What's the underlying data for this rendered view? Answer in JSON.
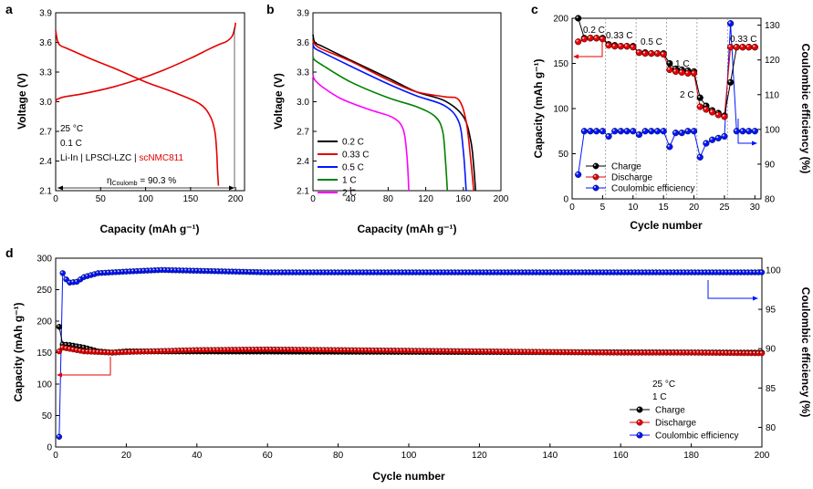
{
  "colors": {
    "black": "#000000",
    "red": "#e60000",
    "blue": "#0015ff",
    "green": "#008000",
    "magenta": "#ff00ff",
    "gray": "#888888"
  },
  "chart_data": [
    {
      "panel": "a",
      "type": "line",
      "xlabel": "Capacity (mAh g⁻¹)",
      "ylabel": "Voltage (V)",
      "xlim": [
        0,
        210
      ],
      "ylim": [
        2.1,
        3.9
      ],
      "xticks": [
        "0",
        "50",
        "100",
        "150",
        "200"
      ],
      "yticks": [
        "2.1",
        "2.4",
        "2.7",
        "3.0",
        "3.3",
        "3.6",
        "3.9"
      ],
      "series": [
        {
          "name": "charge",
          "color": "red",
          "x": [
            0,
            1,
            3,
            10,
            30,
            60,
            90,
            120,
            150,
            170,
            182,
            190,
            196,
            199,
            200
          ],
          "y": [
            3.0,
            3.02,
            3.03,
            3.05,
            3.08,
            3.14,
            3.22,
            3.32,
            3.44,
            3.53,
            3.58,
            3.61,
            3.66,
            3.74,
            3.8
          ]
        },
        {
          "name": "discharge",
          "color": "red",
          "x": [
            0,
            2,
            5,
            15,
            40,
            70,
            100,
            130,
            160,
            172,
            177,
            179,
            180,
            181
          ],
          "y": [
            3.72,
            3.62,
            3.57,
            3.53,
            3.43,
            3.32,
            3.2,
            3.1,
            2.98,
            2.85,
            2.7,
            2.5,
            2.3,
            2.15
          ]
        }
      ],
      "annotations": {
        "temp": "25 °C",
        "rate": "0.1 C",
        "cell_prefix": "Li-In | LPSCl-LZC | ",
        "cell_cathode": "scNMC811",
        "eta_prefix": "η",
        "eta_sub": "Coulomb",
        "eta_value": " = 90.3 %"
      }
    },
    {
      "panel": "b",
      "type": "line",
      "xlabel": "Capacity (mAh g⁻¹)",
      "ylabel": "Voltage (V)",
      "xlim": [
        0,
        200
      ],
      "ylim": [
        2.1,
        3.9
      ],
      "xticks": [
        "0",
        "40",
        "80",
        "120",
        "160",
        "200"
      ],
      "yticks": [
        "2.1",
        "2.4",
        "2.7",
        "3.0",
        "3.3",
        "3.6",
        "3.9"
      ],
      "series": [
        {
          "name": "0.2 C",
          "color": "black",
          "x": [
            0,
            2,
            10,
            40,
            80,
            110,
            140,
            160,
            168,
            171,
            173
          ],
          "y": [
            3.68,
            3.6,
            3.56,
            3.42,
            3.24,
            3.1,
            3.01,
            2.85,
            2.6,
            2.35,
            2.1
          ]
        },
        {
          "name": "0.33 C",
          "color": "red",
          "x": [
            0,
            2,
            10,
            40,
            80,
            110,
            140,
            155,
            163,
            168,
            171
          ],
          "y": [
            3.62,
            3.58,
            3.53,
            3.41,
            3.22,
            3.1,
            3.05,
            3.02,
            2.8,
            2.4,
            2.1
          ]
        },
        {
          "name": "0.5 C",
          "color": "blue",
          "x": [
            0,
            2,
            10,
            40,
            80,
            110,
            140,
            155,
            160,
            163
          ],
          "y": [
            3.58,
            3.54,
            3.5,
            3.36,
            3.18,
            3.06,
            2.96,
            2.8,
            2.5,
            2.1
          ]
        },
        {
          "name": "1 C",
          "color": "green",
          "x": [
            0,
            2,
            10,
            40,
            80,
            110,
            130,
            138,
            141,
            143
          ],
          "y": [
            3.45,
            3.42,
            3.37,
            3.2,
            3.04,
            2.95,
            2.85,
            2.7,
            2.4,
            2.1
          ]
        },
        {
          "name": "2 C",
          "color": "magenta",
          "x": [
            0,
            2,
            10,
            30,
            60,
            85,
            96,
            100,
            102
          ],
          "y": [
            3.27,
            3.22,
            3.15,
            3.03,
            2.92,
            2.84,
            2.72,
            2.45,
            2.1
          ]
        }
      ],
      "legend": [
        "0.2 C",
        "0.33 C",
        "0.5 C",
        "1 C",
        "2 C"
      ]
    },
    {
      "panel": "c",
      "type": "scatter",
      "xlabel": "Cycle number",
      "ylabel": "Capacity (mAh g⁻¹)",
      "y2label": "Coulombic efficiency (%)",
      "xlim": [
        0,
        31
      ],
      "ylim": [
        0,
        200
      ],
      "y2lim": [
        80,
        132
      ],
      "xticks": [
        "0",
        "5",
        "10",
        "15",
        "20",
        "25",
        "30"
      ],
      "yticks": [
        "0",
        "50",
        "100",
        "150",
        "200"
      ],
      "y2ticks": [
        "80",
        "90",
        "100",
        "110",
        "120",
        "130"
      ],
      "segment_dividers": [
        5.5,
        10.5,
        15.5,
        20.5,
        25.5
      ],
      "rate_labels": [
        "0.2 C",
        "0.33 C",
        "0.5 C",
        "1 C",
        "2 C",
        "0.33 C"
      ],
      "cycles": [
        1,
        2,
        3,
        4,
        5,
        6,
        7,
        8,
        9,
        10,
        11,
        12,
        13,
        14,
        15,
        16,
        17,
        18,
        19,
        20,
        21,
        22,
        23,
        24,
        25,
        26,
        27,
        28,
        29,
        30
      ],
      "charge": [
        200,
        178,
        178,
        178,
        178,
        171,
        170,
        169,
        169,
        169,
        162,
        162,
        161,
        161,
        161,
        150,
        144,
        143,
        142,
        141,
        112,
        103,
        98,
        95,
        92,
        129,
        168,
        168,
        168,
        168
      ],
      "discharge": [
        174,
        177,
        178,
        178,
        177,
        170,
        169,
        169,
        169,
        168,
        162,
        161,
        161,
        161,
        160,
        143,
        141,
        140,
        139,
        139,
        102,
        99,
        96,
        93,
        91,
        168,
        168,
        168,
        168,
        168
      ],
      "efficiency": [
        87,
        99.5,
        99.5,
        99.5,
        99.5,
        98,
        99.5,
        99.5,
        99.5,
        99.5,
        98.5,
        99.5,
        99.5,
        99.5,
        99.5,
        95,
        99,
        99,
        99.5,
        99.5,
        92,
        96,
        97,
        97.5,
        98,
        130.5,
        99.5,
        99.5,
        99.5,
        99.5
      ],
      "legend": [
        "Charge",
        "Discharge",
        "Coulombic efficiency"
      ]
    },
    {
      "panel": "d",
      "type": "scatter",
      "xlabel": "Cycle number",
      "ylabel": "Capacity (mAh g⁻¹)",
      "y2label": "Coulombic efficiency (%)",
      "xlim": [
        0,
        200
      ],
      "ylim": [
        0,
        300
      ],
      "y2lim": [
        77.5,
        101.5
      ],
      "xticks": [
        "0",
        "20",
        "40",
        "60",
        "80",
        "100",
        "120",
        "140",
        "160",
        "180",
        "200"
      ],
      "yticks": [
        "0",
        "50",
        "100",
        "150",
        "200",
        "250",
        "300"
      ],
      "y2ticks": [
        "80",
        "85",
        "90",
        "95",
        "100"
      ],
      "charge": {
        "first": 191,
        "early": [
          [
            2,
            163
          ],
          [
            4,
            162
          ],
          [
            8,
            158
          ],
          [
            12,
            152
          ],
          [
            16,
            150
          ]
        ],
        "plateau": 152
      },
      "discharge": {
        "start": 152,
        "peak": [
          [
            2,
            158
          ],
          [
            4,
            156
          ],
          [
            8,
            152
          ],
          [
            16,
            150
          ]
        ],
        "points": [
          [
            20,
            151
          ],
          [
            40,
            154
          ],
          [
            60,
            155
          ],
          [
            80,
            154
          ],
          [
            100,
            153
          ],
          [
            120,
            152
          ],
          [
            140,
            151
          ],
          [
            160,
            150
          ],
          [
            180,
            150
          ],
          [
            200,
            149
          ]
        ]
      },
      "efficiency": {
        "first": 78.8,
        "points": [
          [
            2,
            99.6
          ],
          [
            3,
            98.8
          ],
          [
            4,
            98.4
          ],
          [
            6,
            98.5
          ],
          [
            8,
            99.1
          ],
          [
            12,
            99.6
          ],
          [
            20,
            99.8
          ],
          [
            30,
            100.0
          ],
          [
            40,
            99.9
          ],
          [
            60,
            99.7
          ],
          [
            100,
            99.7
          ],
          [
            150,
            99.7
          ],
          [
            200,
            99.7
          ]
        ]
      },
      "annotations": {
        "temp": "25 °C",
        "rate": "1 C"
      },
      "legend": [
        "Charge",
        "Discharge",
        "Coulombic efficiency"
      ]
    }
  ]
}
